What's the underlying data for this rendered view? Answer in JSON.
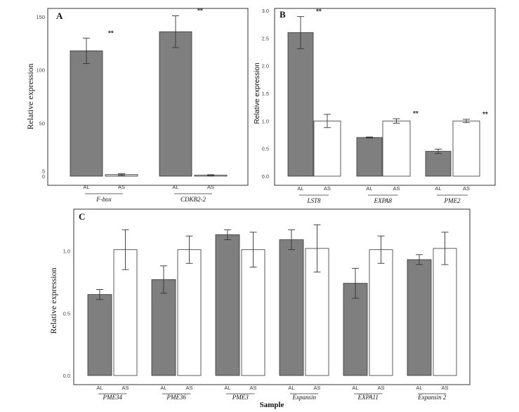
{
  "chart_data": [
    {
      "panel": "A",
      "type": "bar",
      "ylabel": "Relative expression",
      "ylim": [
        0,
        150
      ],
      "yticks": [
        0,
        5,
        50,
        100,
        150
      ],
      "genes": [
        "F-box",
        "CDKB2-2"
      ],
      "series_labels": [
        "AL",
        "AS"
      ],
      "values": [
        [
          118,
          1.5
        ],
        [
          136,
          1
        ]
      ],
      "errors": [
        [
          12,
          0.8
        ],
        [
          15,
          0.4
        ]
      ],
      "significance": [
        "**",
        "**"
      ],
      "colors": [
        "#7f7f7f",
        "#dcdcdc"
      ]
    },
    {
      "panel": "B",
      "type": "bar",
      "ylabel": "Relative expression",
      "ylim": [
        0,
        3.0
      ],
      "yticks": [
        "0.0",
        "0.5",
        "1.0",
        "1.5",
        "2.0",
        "2.5",
        "3.0"
      ],
      "genes": [
        "LST8",
        "EXPA8",
        "PME2"
      ],
      "series_labels": [
        "AL",
        "AS"
      ],
      "values": [
        [
          2.6,
          1.0
        ],
        [
          0.7,
          1.0
        ],
        [
          0.45,
          1.0
        ]
      ],
      "errors": [
        [
          0.29,
          0.12
        ],
        [
          0.01,
          0.04
        ],
        [
          0.04,
          0.03
        ]
      ],
      "significance": [
        "**",
        "**",
        "**"
      ],
      "colors": [
        "#7f7f7f",
        "#ffffff"
      ]
    },
    {
      "panel": "C",
      "type": "bar",
      "ylabel": "Relative expression",
      "xlabel": "Sample",
      "ylim": [
        0,
        1.2
      ],
      "yticks": [
        "0.0",
        "0.5",
        "1.0"
      ],
      "genes": [
        "PME34",
        "PME36",
        "PME3",
        "Expansin",
        "EXPA11",
        "Expansin 2"
      ],
      "series_labels": [
        "AL",
        "AS"
      ],
      "values": [
        [
          0.65,
          1.01
        ],
        [
          0.77,
          1.01
        ],
        [
          1.13,
          1.01
        ],
        [
          1.09,
          1.02
        ],
        [
          0.74,
          1.01
        ],
        [
          0.93,
          1.02
        ]
      ],
      "errors": [
        [
          0.04,
          0.16
        ],
        [
          0.11,
          0.11
        ],
        [
          0.04,
          0.14
        ],
        [
          0.08,
          0.19
        ],
        [
          0.12,
          0.11
        ],
        [
          0.04,
          0.13
        ]
      ],
      "significance": [],
      "colors": [
        "#7f7f7f",
        "#ffffff"
      ]
    }
  ]
}
